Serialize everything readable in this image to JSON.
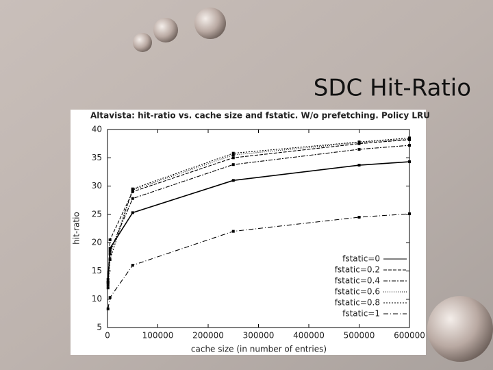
{
  "slide_title": "SDC Hit-Ratio",
  "chart_data": {
    "type": "line",
    "title": "Altavista: hit-ratio vs. cache size and fstatic. W/o prefetching. Policy LRU",
    "x_label": "cache size (in number of entries)",
    "y_label": "hit-ratio",
    "x": [
      1000,
      5000,
      50000,
      250000,
      500000,
      600000
    ],
    "series": [
      {
        "name": "fstatic=0",
        "color": "#000000",
        "values": [
          13,
          19,
          25.3,
          31,
          33.7,
          34.3
        ]
      },
      {
        "name": "fstatic=0.2",
        "color": "#000000",
        "values": [
          13.5,
          20.5,
          29,
          35,
          37.5,
          38.2
        ]
      },
      {
        "name": "fstatic=0.4",
        "color": "#000000",
        "values": [
          13,
          18.5,
          27.8,
          33.8,
          36.5,
          37.2
        ]
      },
      {
        "name": "fstatic=0.6",
        "color": "#000000",
        "values": [
          12.5,
          18,
          29.3,
          35.5,
          37.7,
          38.3
        ]
      },
      {
        "name": "fstatic=0.8",
        "color": "#000000",
        "values": [
          12,
          17,
          29.5,
          35.8,
          37.8,
          38.5
        ]
      },
      {
        "name": "fstatic=1",
        "color": "#000000",
        "values": [
          8.3,
          10.3,
          16,
          22,
          24.5,
          25.1
        ]
      }
    ],
    "xlim": [
      0,
      600000
    ],
    "xticks": [
      0,
      100000,
      200000,
      300000,
      400000,
      500000,
      600000
    ],
    "ylim": [
      5,
      40
    ],
    "yticks": [
      5,
      10,
      15,
      20,
      25,
      30,
      35,
      40
    ],
    "legend": "lower-right"
  }
}
